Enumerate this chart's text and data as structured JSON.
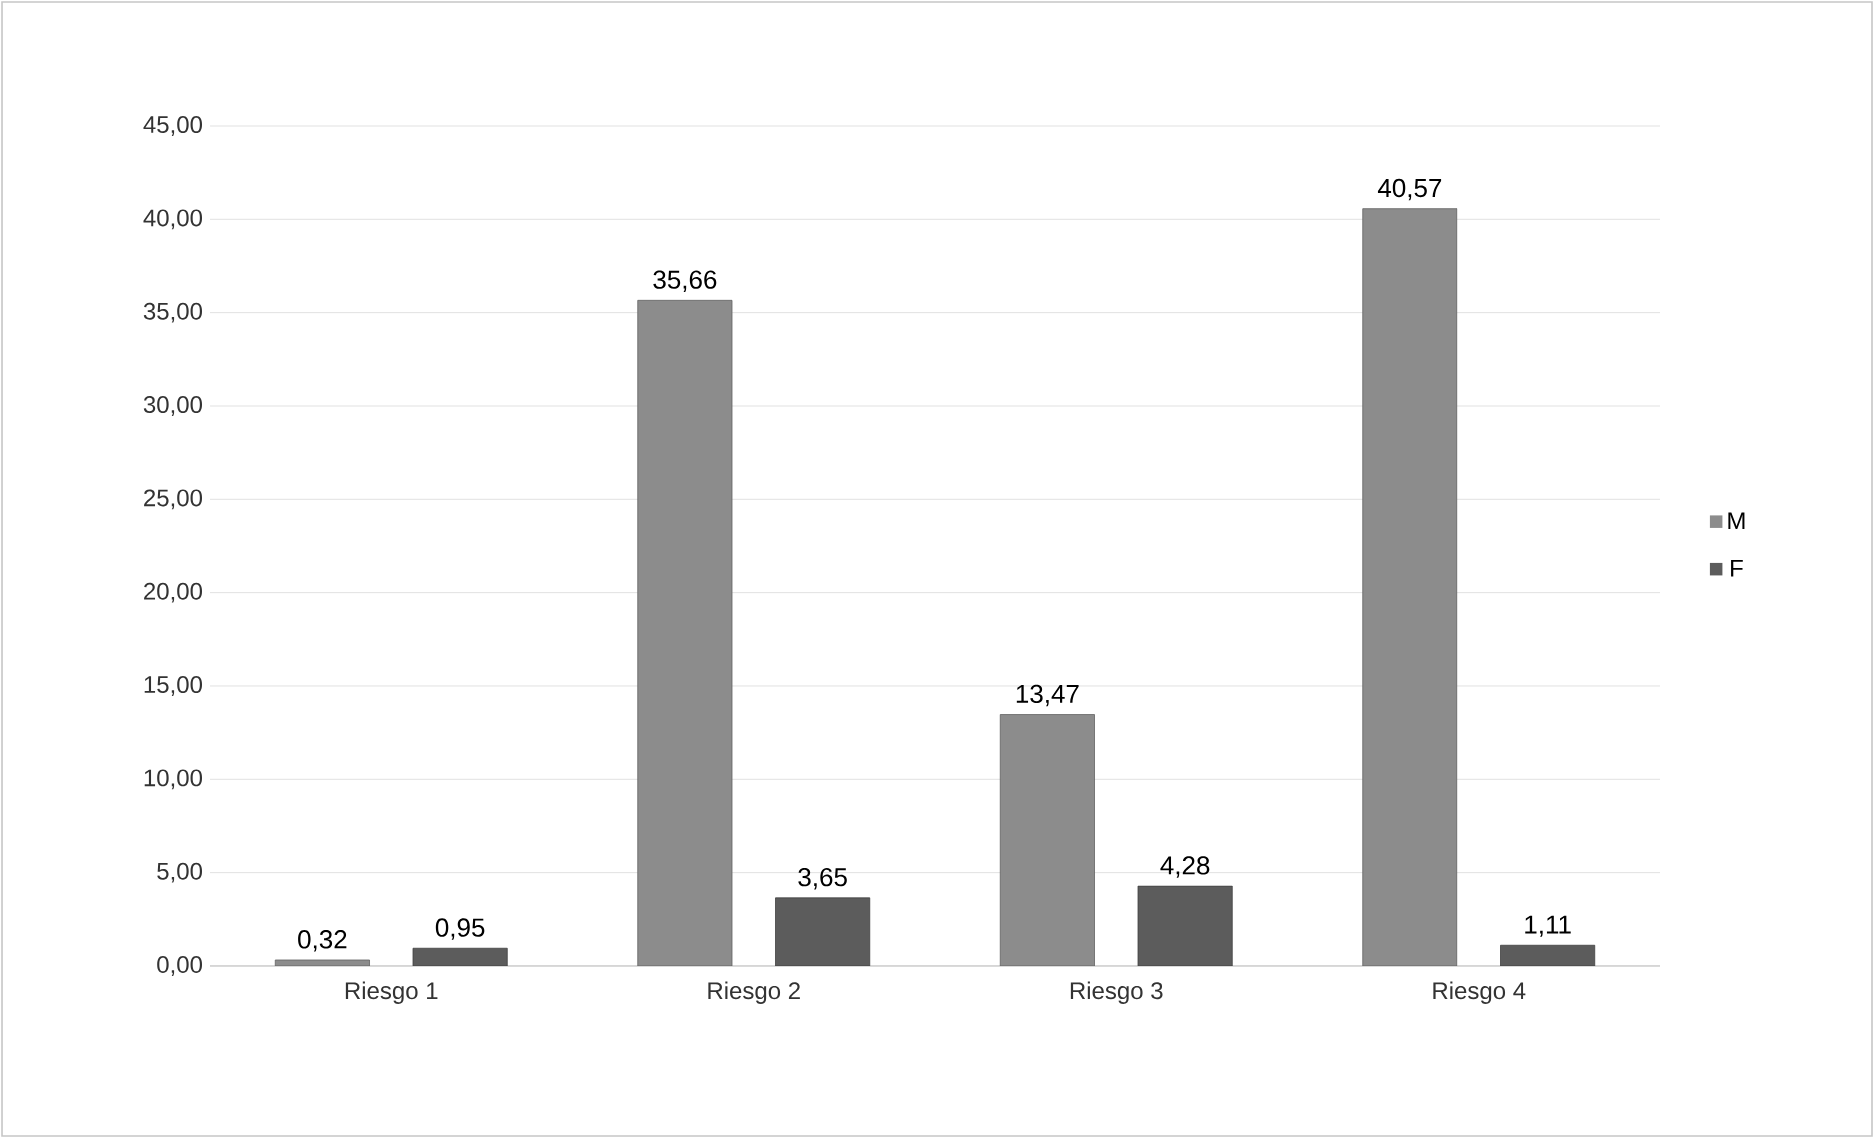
{
  "chart_data": {
    "type": "bar",
    "categories": [
      "Riesgo 1",
      "Riesgo 2",
      "Riesgo 3",
      "Riesgo 4"
    ],
    "series": [
      {
        "name": "M",
        "color": "#8c8c8c",
        "values": [
          0.32,
          35.66,
          13.47,
          40.57
        ],
        "value_labels": [
          "0,32",
          "35,66",
          "13,47",
          "40,57"
        ]
      },
      {
        "name": "F",
        "color": "#5c5c5c",
        "values": [
          0.95,
          3.65,
          4.28,
          1.11
        ],
        "value_labels": [
          "0,95",
          "3,65",
          "4,28",
          "1,11"
        ]
      }
    ],
    "ylim": [
      0,
      45
    ],
    "yticks": [
      {
        "value": 0,
        "label": "0,00"
      },
      {
        "value": 5,
        "label": "5,00"
      },
      {
        "value": 10,
        "label": "10,00"
      },
      {
        "value": 15,
        "label": "15,00"
      },
      {
        "value": 20,
        "label": "20,00"
      },
      {
        "value": 25,
        "label": "25,00"
      },
      {
        "value": 30,
        "label": "30,00"
      },
      {
        "value": 35,
        "label": "35,00"
      },
      {
        "value": 40,
        "label": "40,00"
      },
      {
        "value": 45,
        "label": "45,00"
      }
    ],
    "grid": "y",
    "legend": "right"
  }
}
